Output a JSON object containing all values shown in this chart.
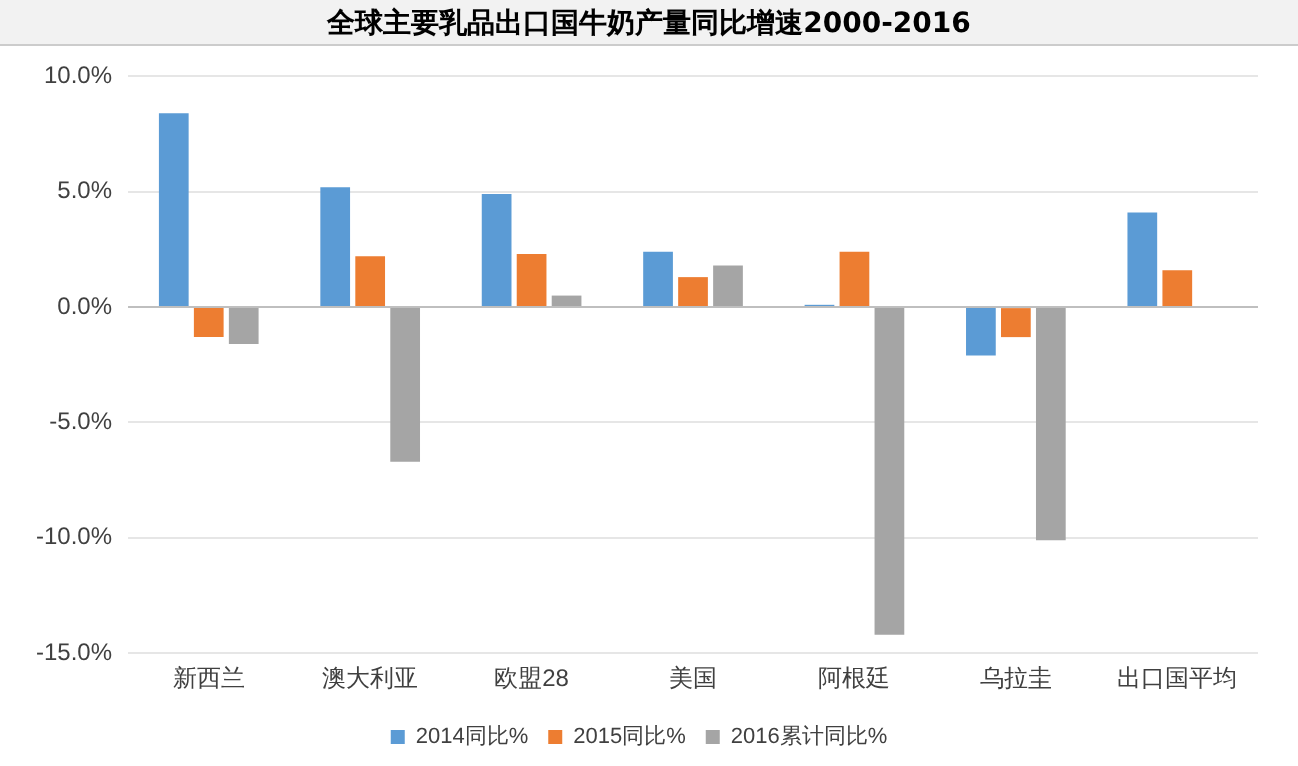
{
  "chart_data": {
    "type": "bar",
    "title": "全球主要乳品出口国牛奶产量同比增速2000-2016",
    "categories": [
      "新西兰",
      "澳大利亚",
      "欧盟28",
      "美国",
      "阿根廷",
      "乌拉圭",
      "出口国平均"
    ],
    "series": [
      {
        "name": "2014同比%",
        "color": "#5b9bd5",
        "values": [
          8.4,
          5.2,
          4.9,
          2.4,
          0.1,
          -2.1,
          4.1
        ]
      },
      {
        "name": "2015同比%",
        "color": "#ed7d31",
        "values": [
          -1.3,
          2.2,
          2.3,
          1.3,
          2.4,
          -1.3,
          1.6
        ]
      },
      {
        "name": "2016累计同比%",
        "color": "#a5a5a5",
        "values": [
          -1.6,
          -6.7,
          0.5,
          1.8,
          -14.2,
          -10.1,
          null
        ]
      }
    ],
    "ylim": [
      -15,
      10
    ],
    "yticks": [
      {
        "value": -15,
        "label": "-15.0%"
      },
      {
        "value": -10,
        "label": "-10.0%"
      },
      {
        "value": -5,
        "label": "-5.0%"
      },
      {
        "value": 0,
        "label": "0.0%"
      },
      {
        "value": 5,
        "label": "5.0%"
      },
      {
        "value": 10,
        "label": "10.0%"
      }
    ],
    "grid": "y",
    "legend": "bottom"
  }
}
